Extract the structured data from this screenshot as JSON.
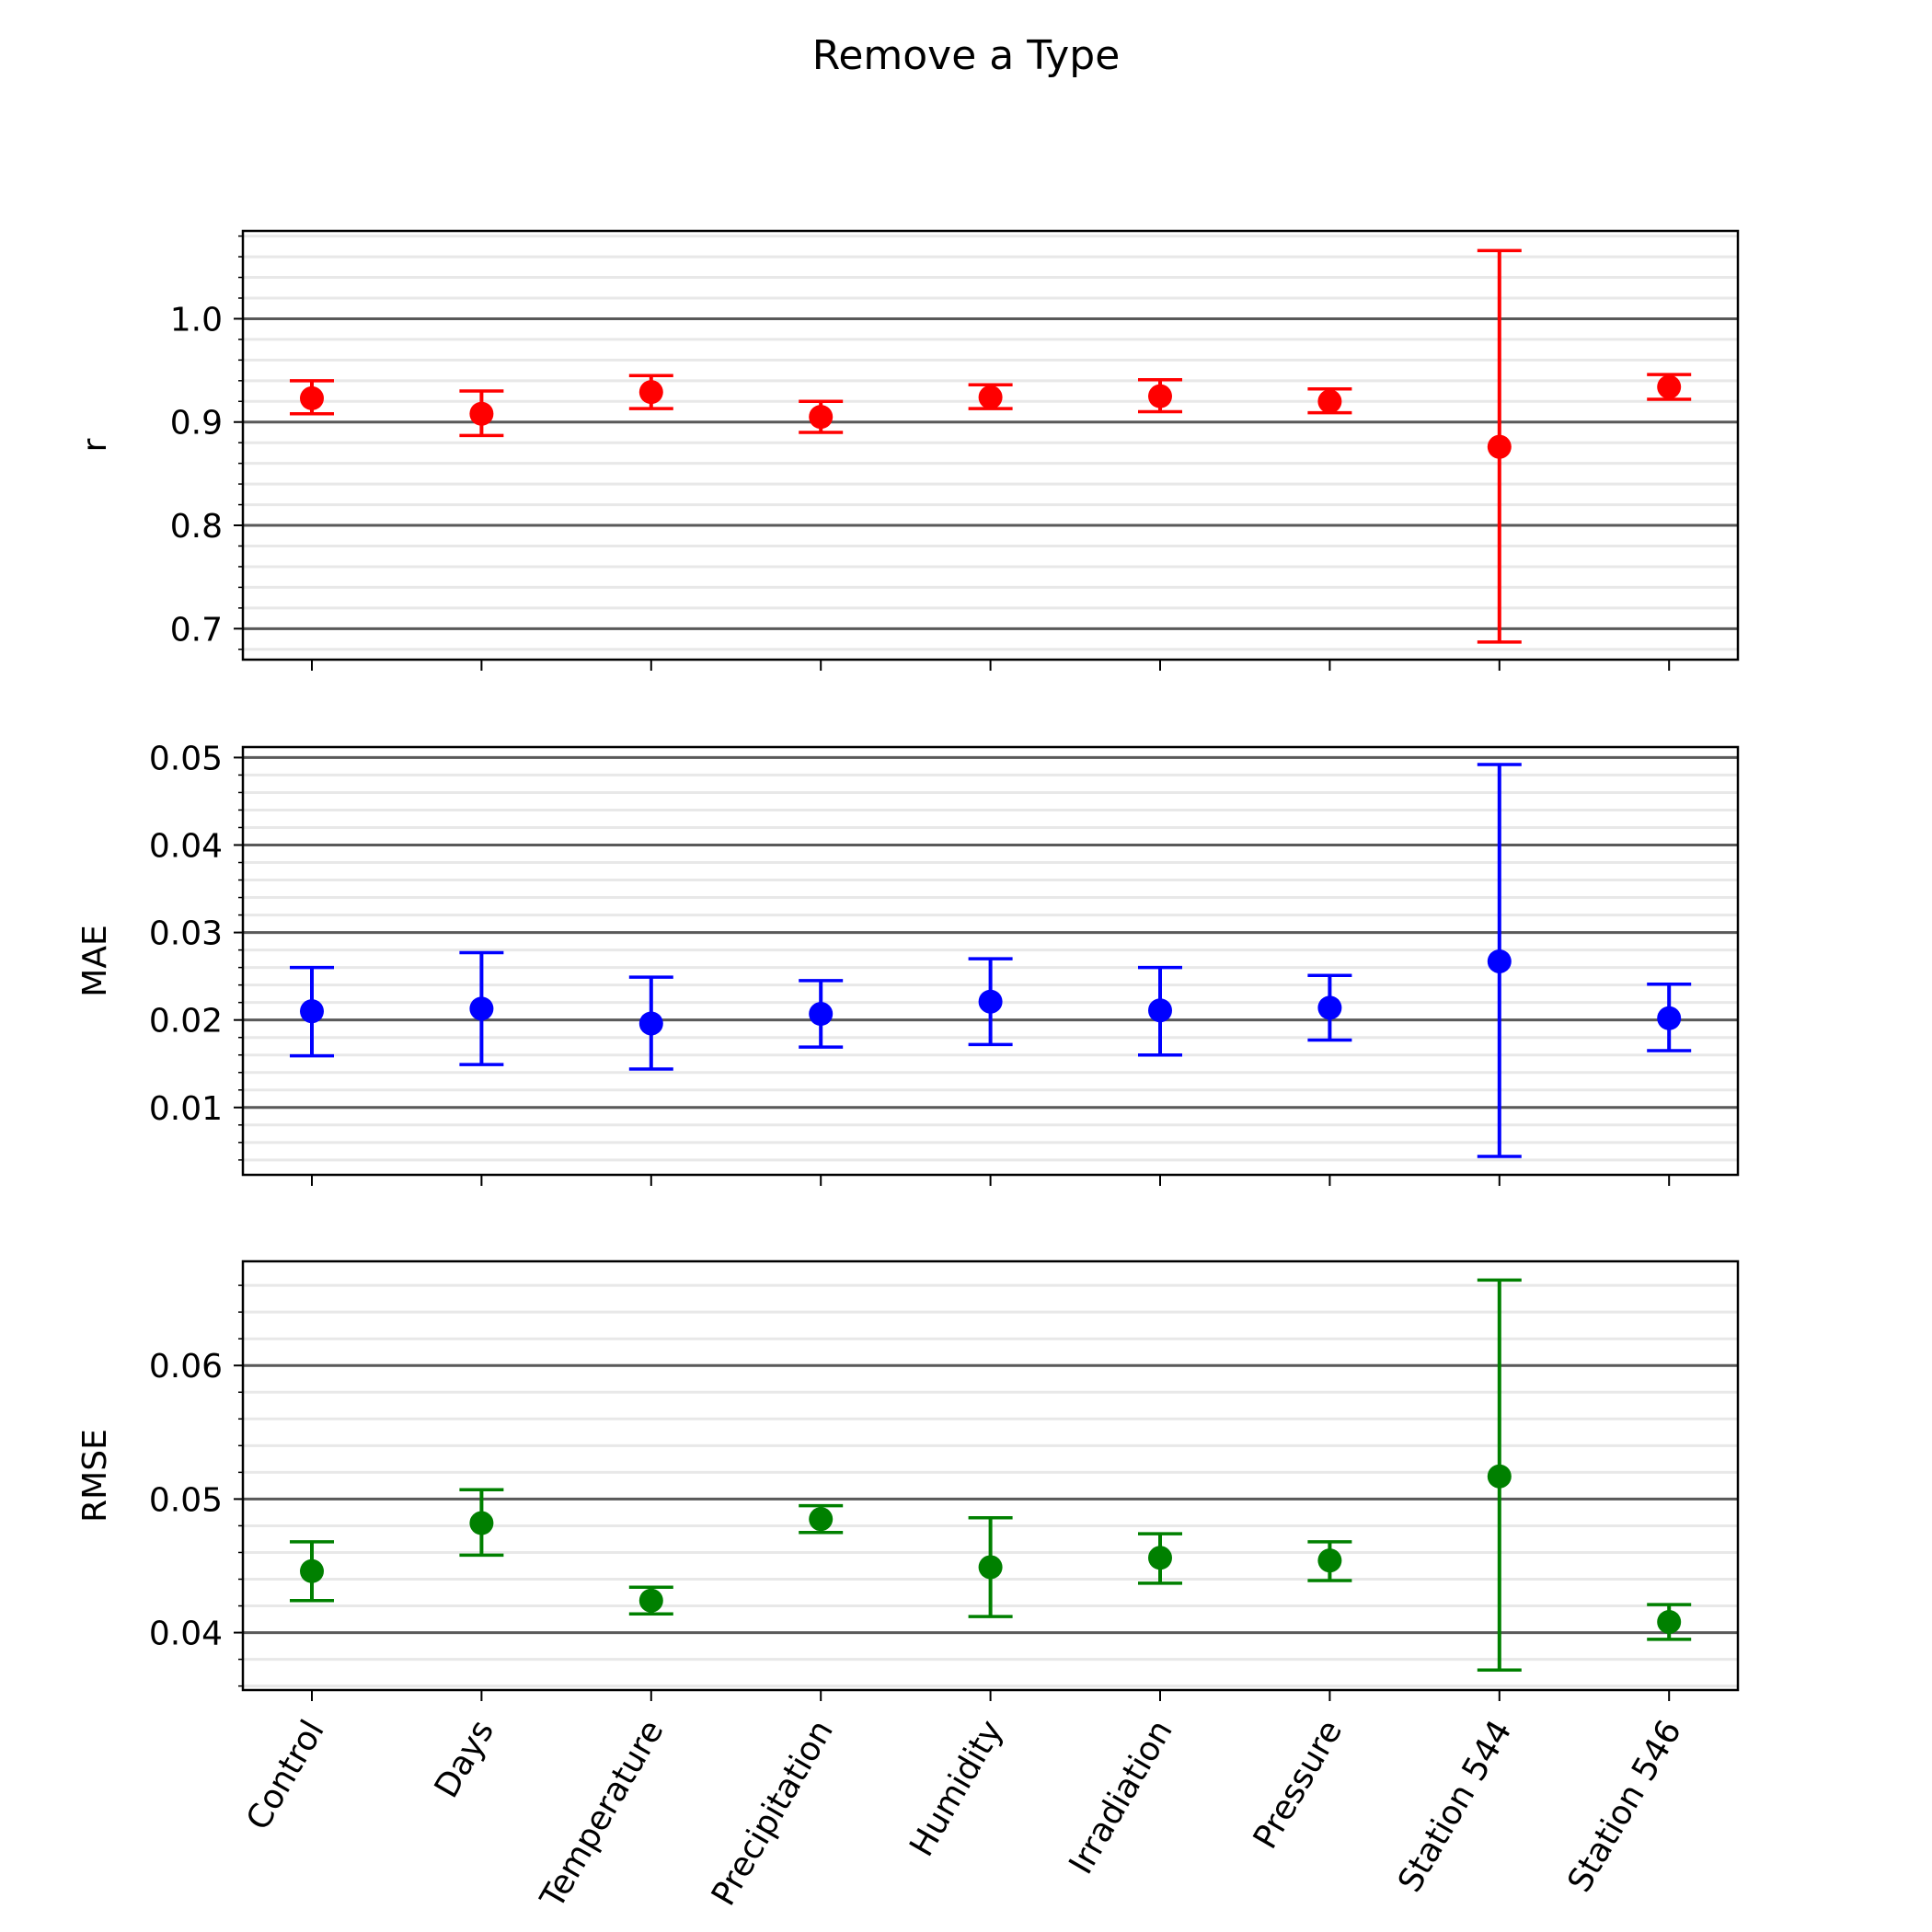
{
  "title": "Remove a Type",
  "categories": [
    "Control",
    "Days",
    "Temperature",
    "Precipitation",
    "Humidity",
    "Irradiation",
    "Pressure",
    "Station 544",
    "Station 546"
  ],
  "chart_data": [
    {
      "type": "scatter",
      "ylabel": "r",
      "color": "#ff0000",
      "ylim": [
        0.67,
        1.085
      ],
      "yticks": [
        0.7,
        0.8,
        0.9,
        1.0
      ],
      "tick_labels": [
        "0.7",
        "0.8",
        "0.9",
        "1.0"
      ],
      "minor_step": 0.02,
      "values": [
        0.923,
        0.908,
        0.929,
        0.905,
        0.924,
        0.925,
        0.92,
        0.876,
        0.934
      ],
      "lower": [
        0.908,
        0.887,
        0.913,
        0.89,
        0.913,
        0.91,
        0.909,
        0.687,
        0.922
      ],
      "upper": [
        0.94,
        0.93,
        0.945,
        0.92,
        0.936,
        0.941,
        0.932,
        1.066,
        0.946
      ],
      "grid": true
    },
    {
      "type": "scatter",
      "ylabel": "MAE",
      "color": "#0000ff",
      "ylim": [
        0.0023,
        0.0512
      ],
      "yticks": [
        0.01,
        0.02,
        0.03,
        0.04,
        0.05
      ],
      "tick_labels": [
        "0.01",
        "0.02",
        "0.03",
        "0.04",
        "0.05"
      ],
      "minor_step": 0.002,
      "values": [
        0.021,
        0.0213,
        0.0196,
        0.0207,
        0.0221,
        0.0211,
        0.0214,
        0.0267,
        0.0202
      ],
      "lower": [
        0.0159,
        0.0149,
        0.0144,
        0.0169,
        0.0172,
        0.016,
        0.0177,
        0.0044,
        0.0165
      ],
      "upper": [
        0.026,
        0.0277,
        0.0249,
        0.0245,
        0.027,
        0.026,
        0.0251,
        0.0492,
        0.0241
      ],
      "grid": true
    },
    {
      "type": "scatter",
      "ylabel": "RMSE",
      "color": "#008000",
      "ylim": [
        0.0357,
        0.0678
      ],
      "yticks": [
        0.04,
        0.05,
        0.06
      ],
      "tick_labels": [
        "0.04",
        "0.05",
        "0.06"
      ],
      "minor_step": 0.002,
      "values": [
        0.0446,
        0.0482,
        0.0424,
        0.0485,
        0.0449,
        0.0456,
        0.0454,
        0.0517,
        0.0408
      ],
      "lower": [
        0.0424,
        0.0458,
        0.0414,
        0.0475,
        0.0412,
        0.0437,
        0.0439,
        0.0372,
        0.0395
      ],
      "upper": [
        0.0468,
        0.0507,
        0.0434,
        0.0495,
        0.0486,
        0.0474,
        0.0468,
        0.0664,
        0.0421
      ],
      "grid": true
    }
  ]
}
